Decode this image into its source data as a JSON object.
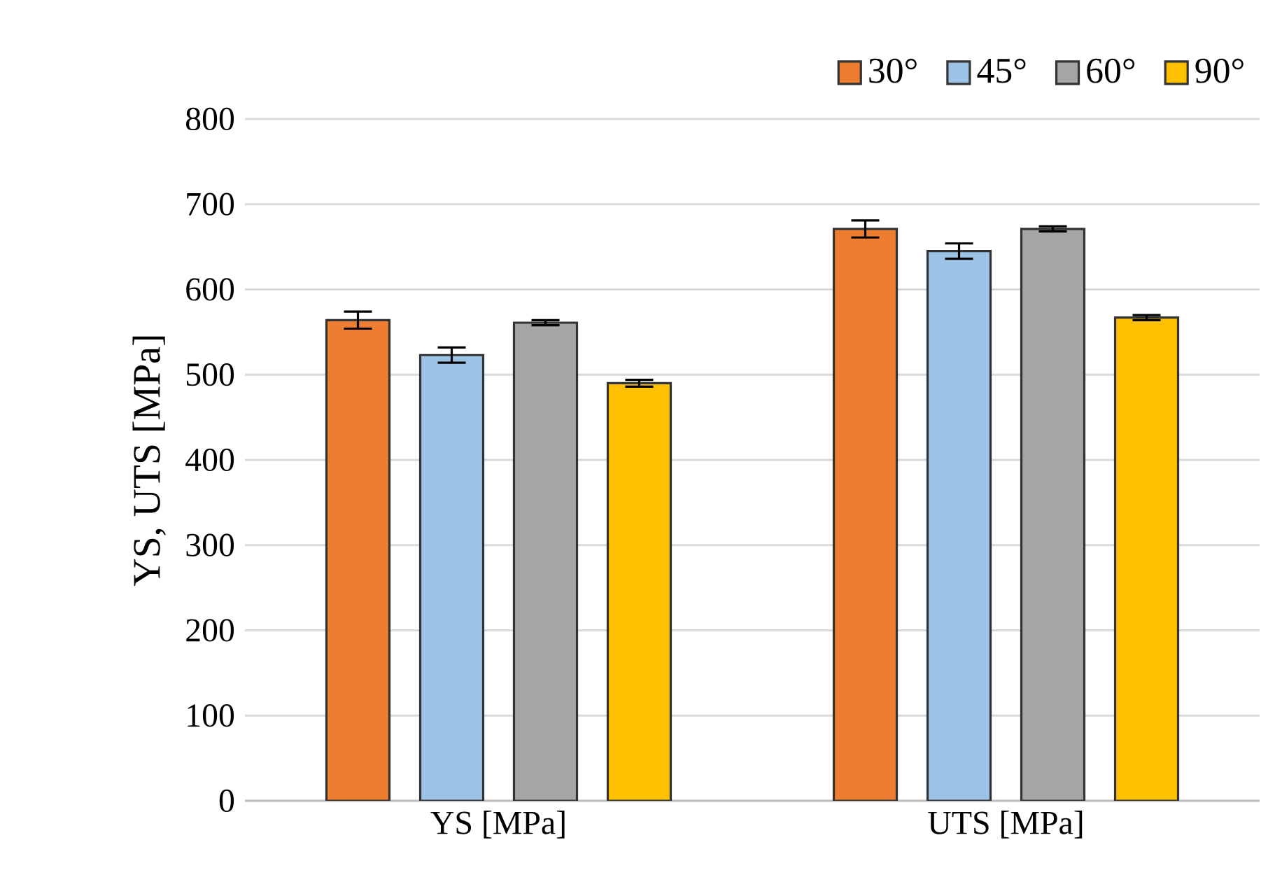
{
  "chart_data": {
    "type": "bar",
    "ylabel": "YS, UTS [MPa]",
    "categories": [
      "YS [MPa]",
      "UTS [MPa]"
    ],
    "ylim": [
      0,
      800
    ],
    "yticks": [
      0,
      100,
      200,
      300,
      400,
      500,
      600,
      700,
      800
    ],
    "grid": "y",
    "legend": "top right",
    "series": [
      {
        "name": "30°",
        "color": "#ED7D31",
        "values": [
          564,
          671
        ],
        "errors": [
          10,
          10
        ]
      },
      {
        "name": "45°",
        "color": "#9DC3E6",
        "values": [
          523,
          645
        ],
        "errors": [
          9,
          9
        ]
      },
      {
        "name": "60°",
        "color": "#A5A5A5",
        "values": [
          561,
          671
        ],
        "errors": [
          3,
          3
        ]
      },
      {
        "name": "90°",
        "color": "#FFC000",
        "values": [
          490,
          567
        ],
        "errors": [
          4,
          3
        ]
      }
    ]
  }
}
